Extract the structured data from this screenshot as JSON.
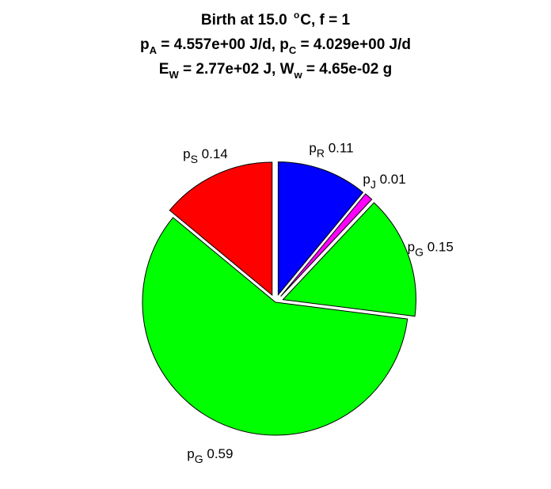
{
  "title": {
    "line1": {
      "prefix": "Birth at 15.0 ",
      "sup": "o",
      "suffix": "C, f = 1"
    },
    "line2": {
      "a_main": "p",
      "a_sub": "A",
      "a_val": " = 4.557e+00 J/d, ",
      "c_main": "p",
      "c_sub": "C",
      "c_val": " = 4.029e+00 J/d"
    },
    "line3": {
      "e_main": "E",
      "e_sub": "W",
      "e_val": " = 2.77e+02 J, ",
      "w_main": "W",
      "w_sub": "w",
      "w_val": " = 4.65e-02 g"
    }
  },
  "chart_data": {
    "type": "pie",
    "start_angle": "12 o'clock",
    "direction": "clockwise",
    "slices": [
      {
        "label_main": "p",
        "label_sub": "R",
        "value_text": "0.11",
        "value": 0.11,
        "color": "#0000ff",
        "exploded": true
      },
      {
        "label_main": "p",
        "label_sub": "J",
        "value_text": "0.01",
        "value": 0.01,
        "color": "#ff00ff",
        "exploded": true
      },
      {
        "label_main": "p",
        "label_sub": "G",
        "value_text": "0.15",
        "value": 0.15,
        "color": "#00ff00",
        "exploded": true
      },
      {
        "label_main": "p",
        "label_sub": "G",
        "value_text": "0.59",
        "value": 0.59,
        "color": "#00ff00",
        "exploded": false
      },
      {
        "label_main": "p",
        "label_sub": "S",
        "value_text": "0.14",
        "value": 0.14,
        "color": "#ff0000",
        "exploded": true
      }
    ]
  }
}
